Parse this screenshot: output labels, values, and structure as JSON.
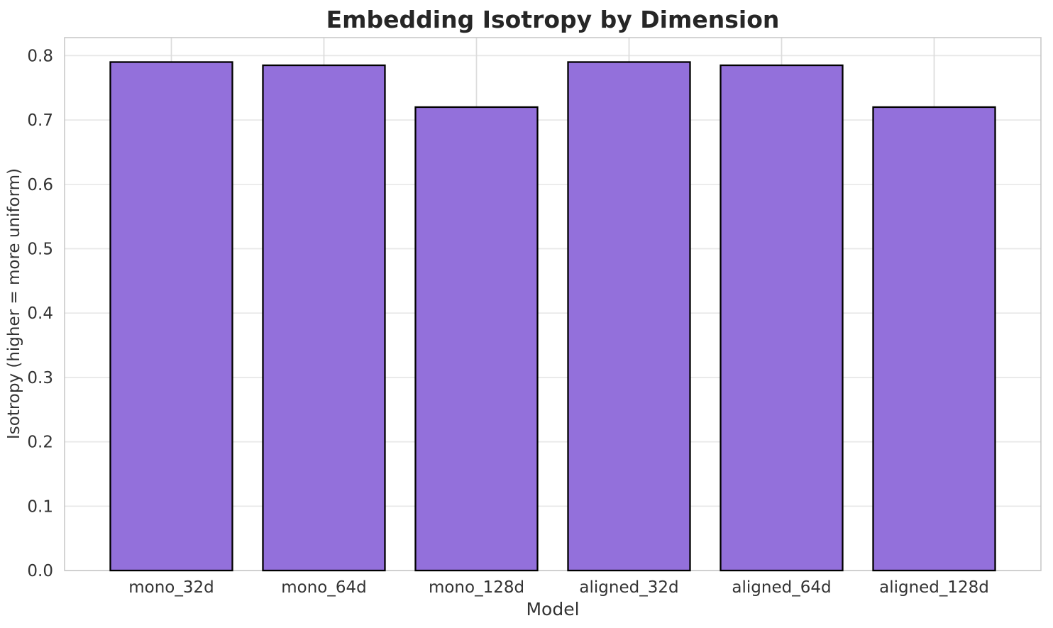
{
  "chart_data": {
    "type": "bar",
    "title": "Embedding Isotropy by Dimension",
    "xlabel": "Model",
    "ylabel": "Isotropy (higher = more uniform)",
    "categories": [
      "mono_32d",
      "mono_64d",
      "mono_128d",
      "aligned_32d",
      "aligned_64d",
      "aligned_128d"
    ],
    "values": [
      0.79,
      0.785,
      0.72,
      0.79,
      0.785,
      0.72
    ],
    "ylim": [
      0,
      0.828
    ],
    "yticks": [
      0.0,
      0.1,
      0.2,
      0.3,
      0.4,
      0.5,
      0.6,
      0.7,
      0.8
    ],
    "ytick_decimals": 1,
    "grid": true,
    "legend": null,
    "bar_fill_color": "#9370DB",
    "bar_edge_color": "#000000",
    "grid_color": "#e7e7e7",
    "vgrid_color": "#dcdcdc",
    "frame_color": "#c9c9c9",
    "text_color": "#333333",
    "title_color": "#262626"
  }
}
